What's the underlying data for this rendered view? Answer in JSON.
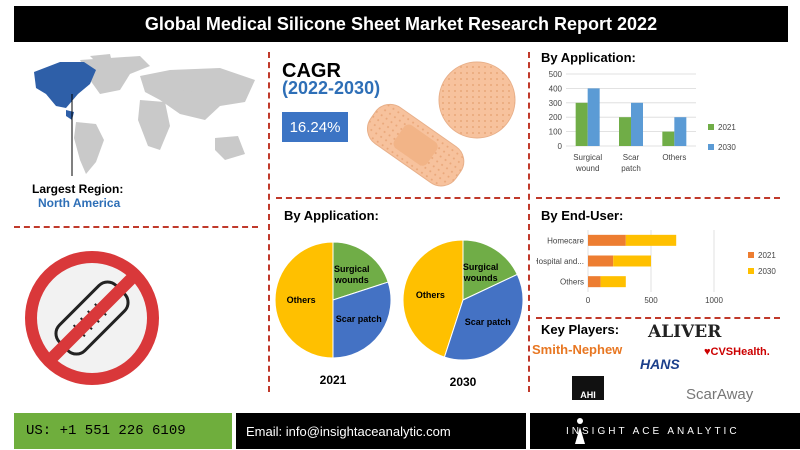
{
  "title": "Global Medical Silicone Sheet Market Research Report 2022",
  "cagr": {
    "label": "CAGR",
    "years": "(2022-2030)",
    "value": "16.24%"
  },
  "largest_region": {
    "label": "Largest Region:",
    "value": "North America"
  },
  "sections": {
    "by_application_pie": "By Application:",
    "by_application_bar": "By Application:",
    "by_end_user": "By End-User:",
    "key_players": "Key Players:"
  },
  "key_players": [
    "ALIVER",
    "Smith-Nephew",
    "HANS",
    "CVSHealth.",
    "AHI",
    "ScarAway"
  ],
  "footer": {
    "phone": "US: +1 551 226 6109",
    "email": "Email: info@insightaceanalytic.com",
    "brand": "INSIGHT ACE ANALYTIC"
  },
  "colors": {
    "2021": "#70ad47",
    "2030": "#5b9bd5",
    "homecare_2021": "#ed7d31",
    "homecare_2030": "#ffc000",
    "pie_others": "#ffc000",
    "pie_scar": "#4472c4",
    "pie_surgical": "#70ad47"
  },
  "chart_data": [
    {
      "type": "bar",
      "title": "By Application:",
      "categories": [
        "Surgical wound",
        "Scar patch",
        "Others"
      ],
      "series": [
        {
          "name": "2021",
          "values": [
            300,
            200,
            100
          ]
        },
        {
          "name": "2030",
          "values": [
            400,
            300,
            200
          ]
        }
      ],
      "ylim": [
        0,
        500
      ],
      "yticks": [
        0,
        100,
        200,
        300,
        400,
        500
      ],
      "legend": "right"
    },
    {
      "type": "bar",
      "orientation": "horizontal",
      "stacked": true,
      "title": "By End-User:",
      "categories": [
        "Homecare",
        "Hospital and...",
        "Others"
      ],
      "series": [
        {
          "name": "2021",
          "values": [
            300,
            200,
            100
          ]
        },
        {
          "name": "2030",
          "values": [
            400,
            300,
            200
          ]
        }
      ],
      "xlim": [
        0,
        1000
      ],
      "xticks": [
        0,
        500,
        1000
      ],
      "legend": "right"
    },
    {
      "type": "pie",
      "caption": "2021",
      "labels": [
        "Others",
        "Surgical wounds",
        "Scar patch"
      ],
      "values": [
        50,
        20,
        30
      ]
    },
    {
      "type": "pie",
      "caption": "2030",
      "labels": [
        "Others",
        "Surgical wounds",
        "Scar patch"
      ],
      "values": [
        45,
        18,
        37
      ]
    }
  ]
}
